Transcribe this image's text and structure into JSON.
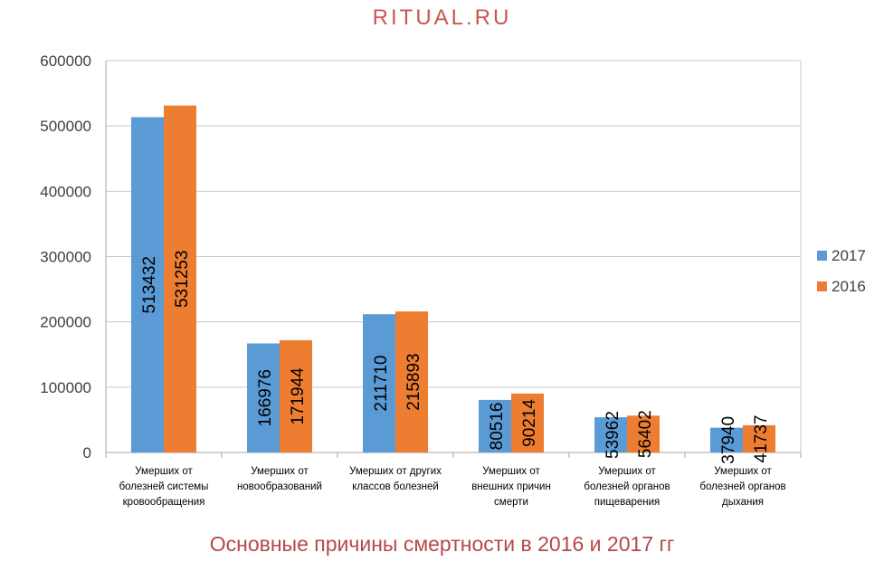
{
  "logo": "RITUAL.RU",
  "chart_data": {
    "type": "bar",
    "title": "Основные причины смертности  в 2016 и 2017 гг",
    "categories": [
      [
        "Умерших от",
        "болезней системы",
        "кровообращения"
      ],
      [
        "Умерших от",
        "новообразований"
      ],
      [
        "Умерших от других",
        "классов болезней"
      ],
      [
        "Умерших от",
        "внешних причин",
        "смерти"
      ],
      [
        "Умерших от",
        "болезней органов",
        "пищеварения"
      ],
      [
        "Умерших от",
        "болезней органов",
        "дыхания"
      ]
    ],
    "series": [
      {
        "name": "2017",
        "color": "#5b9bd5",
        "values": [
          513432,
          166976,
          211710,
          80516,
          53962,
          37940
        ]
      },
      {
        "name": "2016",
        "color": "#ed7d31",
        "values": [
          531253,
          171944,
          215893,
          90214,
          56402,
          41737
        ]
      }
    ],
    "ylim": [
      0,
      600000
    ],
    "yticks": [
      "0",
      "100000",
      "200000",
      "300000",
      "400000",
      "500000",
      "600000"
    ],
    "legend_position": "right",
    "grid": true
  }
}
